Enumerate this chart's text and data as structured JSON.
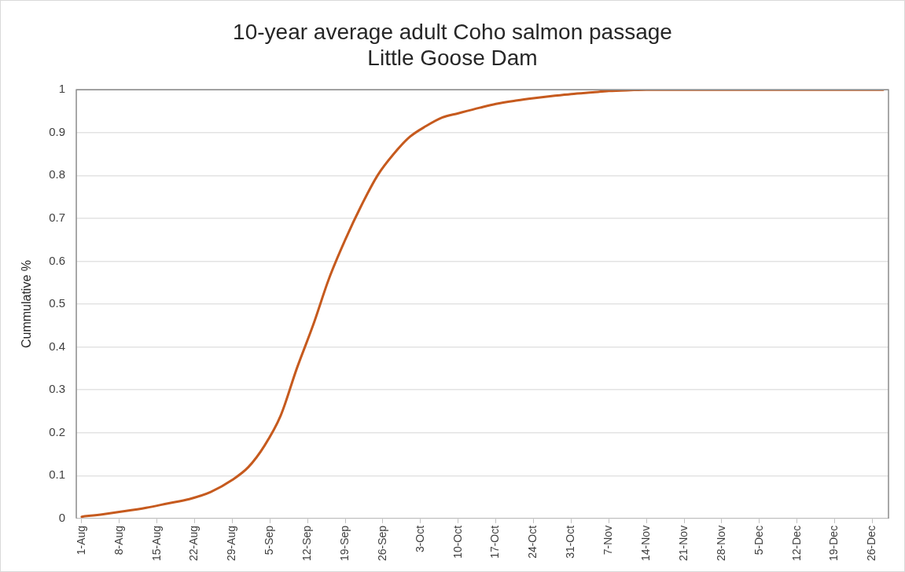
{
  "chart_data": {
    "type": "line",
    "title": "10-year average adult Coho salmon passage\nLittle Goose Dam",
    "ylabel": "Cummulative %",
    "x": [
      "--08-01",
      "--08-05",
      "--08-09",
      "--08-13",
      "--08-17",
      "--08-21",
      "--08-25",
      "--08-29",
      "--09-01",
      "--09-04",
      "--09-07",
      "--09-10",
      "--09-13",
      "--09-16",
      "--09-19",
      "--09-22",
      "--09-25",
      "--09-28",
      "--10-01",
      "--10-04",
      "--10-07",
      "--10-10",
      "--10-14",
      "--10-17",
      "--10-21",
      "--10-24",
      "--10-28",
      "--10-31",
      "--11-04",
      "--11-07",
      "--11-11",
      "--11-14",
      "--11-21",
      "--12-01",
      "--12-15",
      "--12-28"
    ],
    "series": [
      {
        "color": "#c65a1e",
        "values": [
          0.004,
          0.01,
          0.017,
          0.025,
          0.035,
          0.045,
          0.062,
          0.09,
          0.12,
          0.17,
          0.24,
          0.35,
          0.45,
          0.56,
          0.65,
          0.73,
          0.8,
          0.85,
          0.89,
          0.915,
          0.935,
          0.945,
          0.958,
          0.967,
          0.975,
          0.98,
          0.986,
          0.99,
          0.994,
          0.997,
          0.999,
          1,
          1,
          1,
          1,
          1
        ]
      }
    ],
    "xlim": [
      "--07-31",
      "--12-29"
    ],
    "xticks": [
      {
        "value": "--08-01",
        "label": "1-Aug"
      },
      {
        "value": "--08-08",
        "label": "8-Aug"
      },
      {
        "value": "--08-15",
        "label": "15-Aug"
      },
      {
        "value": "--08-22",
        "label": "22-Aug"
      },
      {
        "value": "--08-29",
        "label": "29-Aug"
      },
      {
        "value": "--09-05",
        "label": "5-Sep"
      },
      {
        "value": "--09-12",
        "label": "12-Sep"
      },
      {
        "value": "--09-19",
        "label": "19-Sep"
      },
      {
        "value": "--09-26",
        "label": "26-Sep"
      },
      {
        "value": "--10-03",
        "label": "3-Oct"
      },
      {
        "value": "--10-10",
        "label": "10-Oct"
      },
      {
        "value": "--10-17",
        "label": "17-Oct"
      },
      {
        "value": "--10-24",
        "label": "24-Oct"
      },
      {
        "value": "--10-31",
        "label": "31-Oct"
      },
      {
        "value": "--11-07",
        "label": "7-Nov"
      },
      {
        "value": "--11-14",
        "label": "14-Nov"
      },
      {
        "value": "--11-21",
        "label": "21-Nov"
      },
      {
        "value": "--11-28",
        "label": "28-Nov"
      },
      {
        "value": "--12-05",
        "label": "5-Dec"
      },
      {
        "value": "--12-12",
        "label": "12-Dec"
      },
      {
        "value": "--12-19",
        "label": "19-Dec"
      },
      {
        "value": "--12-26",
        "label": "26-Dec"
      }
    ],
    "ylim": [
      0,
      1
    ],
    "yticks": [
      0,
      0.1,
      0.2,
      0.3,
      0.4,
      0.5,
      0.6,
      0.7,
      0.8,
      0.9,
      1
    ],
    "grid": "y",
    "legend": false,
    "marker": "none",
    "line_style": "solid"
  }
}
